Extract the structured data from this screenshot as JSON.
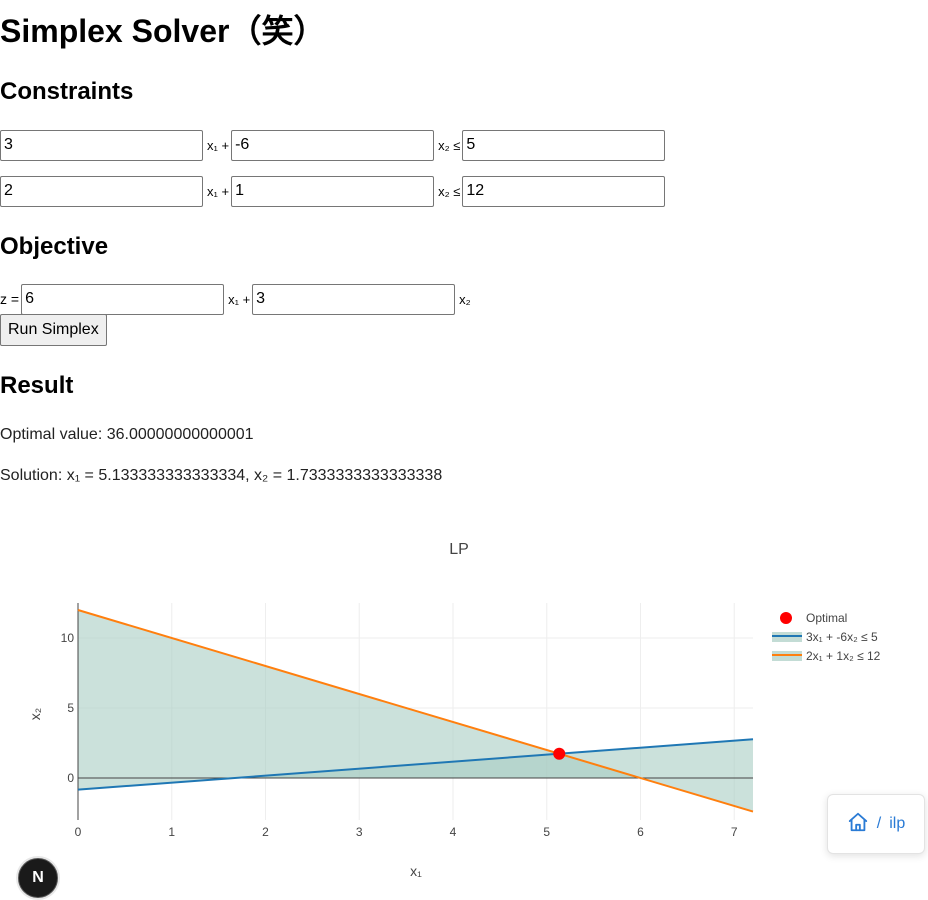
{
  "page": {
    "title": "Simplex Solver（笑）"
  },
  "constraints": {
    "heading": "Constraints",
    "rows": [
      {
        "a": "3",
        "b": "-6",
        "rhs": "5"
      },
      {
        "a": "2",
        "b": "1",
        "rhs": "12"
      }
    ],
    "x1_label": "x₁ +",
    "x2_label": "x₂ ≤"
  },
  "objective": {
    "heading": "Objective",
    "prefix": "z =",
    "c1": "6",
    "c2": "3",
    "x1_label": "x₁ +",
    "x2_label": "x₂"
  },
  "run_button": "Run Simplex",
  "result": {
    "heading": "Result",
    "optimal_text": "Optimal value: 36.00000000000001",
    "solution_text": "Solution: x₁ = 5.133333333333334, x₂ = 1.7333333333333338"
  },
  "chart_data": {
    "type": "line",
    "title": "LP",
    "xlabel": "x₁",
    "ylabel": "x₂",
    "xlim": [
      0,
      7.2
    ],
    "ylim": [
      -3,
      12.5
    ],
    "xticks": [
      0,
      1,
      2,
      3,
      4,
      5,
      6,
      7
    ],
    "yticks": [
      0,
      5,
      10
    ],
    "grid": true,
    "legend_position": "right",
    "series": [
      {
        "name": "2x₁ + 1x₂ ≤ 12",
        "color": "#ff7f0e",
        "fill": "#a9cdc3",
        "x": [
          0,
          7.2
        ],
        "y": [
          12,
          -2.4
        ]
      },
      {
        "name": "3x₁ + -6x₂ ≤ 5",
        "color": "#1f77b4",
        "fill": "#a9cdc3",
        "x": [
          0,
          7.2
        ],
        "y": [
          -0.8333,
          2.7667
        ]
      }
    ],
    "optimal": {
      "name": "Optimal",
      "color": "#ff0000",
      "x": 5.1333,
      "y": 1.7333
    }
  },
  "badges": {
    "n_logo": "N",
    "crumb_icon": "home-icon",
    "crumb_sep": "/",
    "crumb_text": "ilp"
  }
}
